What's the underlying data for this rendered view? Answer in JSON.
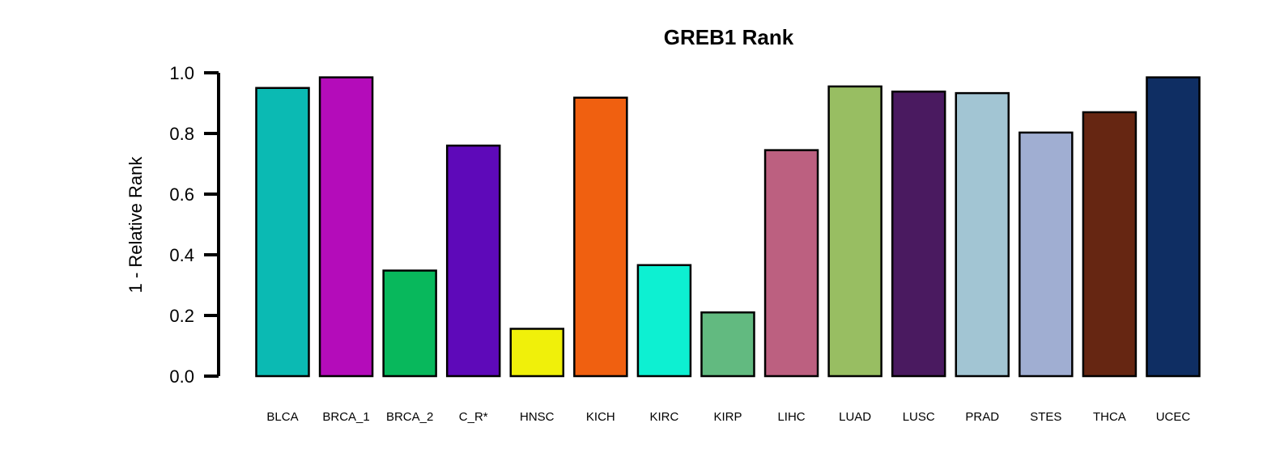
{
  "chart_data": {
    "type": "bar",
    "title": "GREB1 Rank",
    "ylabel": "1 - Relative Rank",
    "xlabel": "",
    "ylim": [
      0,
      1.0
    ],
    "yticks": [
      0.0,
      0.2,
      0.4,
      0.6,
      0.8,
      1.0
    ],
    "ytick_labels": [
      "0.0",
      "0.2",
      "0.4",
      "0.6",
      "0.8",
      "1.0"
    ],
    "grid": false,
    "categories": [
      "BLCA",
      "BRCA_1",
      "BRCA_2",
      "C_R*",
      "HNSC",
      "KICH",
      "KIRC",
      "KIRP",
      "LIHC",
      "LUAD",
      "LUSC",
      "PRAD",
      "STES",
      "THCA",
      "UCEC"
    ],
    "values": [
      0.95,
      0.985,
      0.348,
      0.76,
      0.156,
      0.918,
      0.366,
      0.21,
      0.745,
      0.955,
      0.938,
      0.933,
      0.803,
      0.87,
      0.985
    ],
    "colors": [
      "#0BBAB3",
      "#B40CBA",
      "#08B85C",
      "#5E09B9",
      "#F0F00A",
      "#F06010",
      "#0DF0D2",
      "#62BA80",
      "#BC6080",
      "#98BE62",
      "#4A1A60",
      "#A2C5D3",
      "#A0AED2",
      "#662612",
      "#0F2E63"
    ]
  }
}
